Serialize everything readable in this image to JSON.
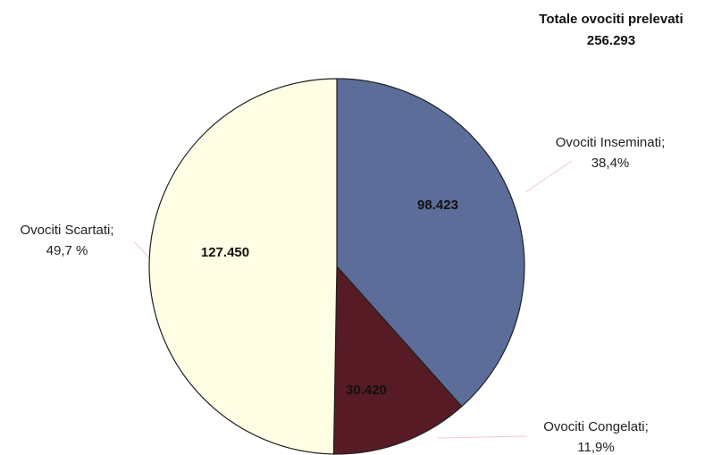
{
  "chart_data": {
    "type": "pie",
    "title": "Totale ovociti prelevati",
    "subtitle": "256.293",
    "categories": [
      "Ovociti Inseminati;",
      "Ovociti Congelati;",
      "Ovociti Scartati;"
    ],
    "percent_labels": [
      "38,4%",
      "11,9%",
      "49,7 %"
    ],
    "values": [
      98423,
      30420,
      127450
    ],
    "value_labels": [
      "98.423",
      "30.420",
      "127.450"
    ],
    "colors": [
      "#5b6d98",
      "#561b25",
      "#fffde3"
    ]
  }
}
